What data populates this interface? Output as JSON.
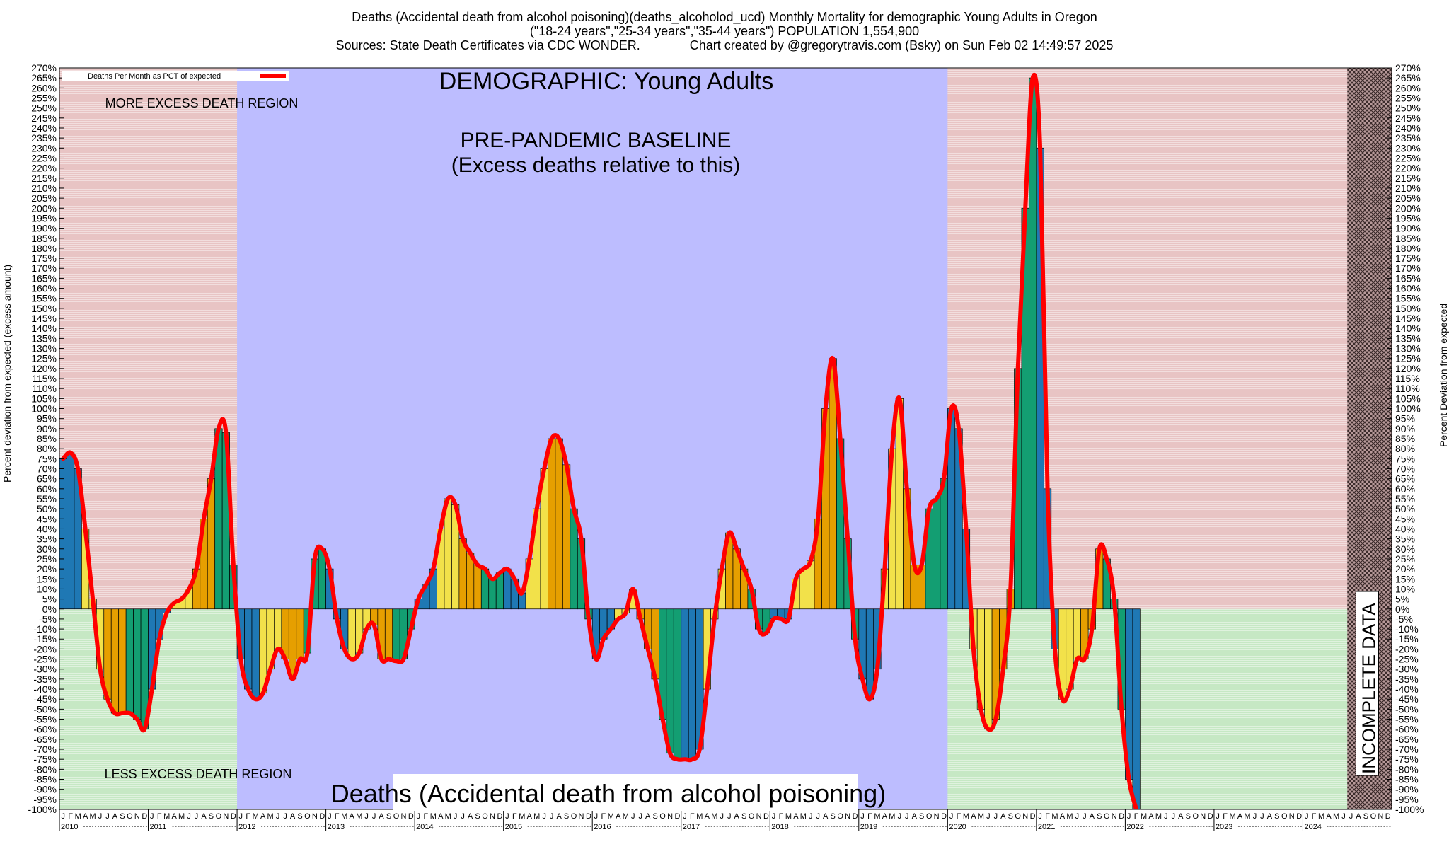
{
  "header": {
    "line1": "Deaths (Accidental death from alcohol poisoning)(deaths_alcoholod_ucd) Monthly Mortality for demographic Young Adults in Oregon",
    "line2": "(\"18-24 years\",\"25-34 years\",\"35-44 years\") POPULATION 1,554,900",
    "line3": "Sources: State Death Certificates via CDC WONDER.              Chart created by @gregorytravis.com (Bsky) on Sun Feb 02 14:49:57 2025"
  },
  "chart_data": {
    "type": "bar",
    "title": "DEMOGRAPHIC: Young Adults",
    "ylabel_left": "Percent deviation from expected (excess amount)",
    "ylabel_right": "Percent Deviation from expected",
    "legend": "Deaths Per Month as PCT of expected",
    "ylim": [
      -100,
      270
    ],
    "ytick_step": 5,
    "start": "2010-01",
    "month_letters": [
      "J",
      "F",
      "M",
      "A",
      "M",
      "J",
      "J",
      "A",
      "S",
      "O",
      "N",
      "D"
    ],
    "years": [
      "2010",
      "2011",
      "2012",
      "2013",
      "2014",
      "2015",
      "2016",
      "2017",
      "2018",
      "2019",
      "2020",
      "2021",
      "2022",
      "2023",
      "2024"
    ],
    "regions": {
      "more_excess": "MORE EXCESS DEATH REGION",
      "less_excess": "LESS EXCESS DEATH REGION",
      "baseline_title": "PRE-PANDEMIC BASELINE",
      "baseline_sub": "(Excess deaths relative to this)",
      "baseline_range": [
        "2012-01",
        "2019-12"
      ],
      "incomplete": "INCOMPLETE DATA",
      "incomplete_from": "2024-07"
    },
    "bottom_label": "Deaths (Accidental death from alcohol poisoning)",
    "colors": {
      "more_bg": "#e8c4c4",
      "less_bg": "#c6e8c4",
      "baseline_bg": "#bdbdff",
      "line": "#ff0000",
      "bars": [
        "#1f78b4",
        "#f2e14a",
        "#e69f00",
        "#139e72"
      ]
    },
    "values": [
      75,
      78,
      70,
      40,
      5,
      -30,
      -45,
      -52,
      -52,
      -52,
      -55,
      -60,
      -40,
      -15,
      -2,
      3,
      5,
      10,
      20,
      45,
      65,
      90,
      88,
      22,
      -25,
      -40,
      -45,
      -42,
      -30,
      -20,
      -25,
      -35,
      -25,
      -22,
      25,
      30,
      20,
      -5,
      -20,
      -25,
      -22,
      -10,
      -8,
      -25,
      -25,
      -26,
      -25,
      -10,
      5,
      12,
      20,
      40,
      55,
      52,
      35,
      28,
      22,
      20,
      15,
      18,
      20,
      15,
      8,
      25,
      50,
      70,
      85,
      85,
      72,
      50,
      35,
      -5,
      -25,
      -15,
      -10,
      -5,
      -2,
      10,
      -5,
      -20,
      -35,
      -55,
      -72,
      -75,
      -75,
      -75,
      -70,
      -40,
      -5,
      20,
      38,
      30,
      20,
      10,
      -10,
      -12,
      -5,
      -5,
      -5,
      15,
      20,
      24,
      45,
      100,
      125,
      85,
      35,
      -15,
      -35,
      -45,
      -30,
      20,
      80,
      105,
      60,
      22,
      22,
      50,
      55,
      65,
      100,
      90,
      40,
      -20,
      -50,
      -60,
      -55,
      -30,
      10,
      120,
      200,
      265,
      230,
      60,
      -20,
      -45,
      -40,
      -25,
      -25,
      -10,
      30,
      25,
      5,
      -50,
      -85,
      -100
    ],
    "ytick_labels": [
      "270%",
      "265%",
      "260%",
      "255%",
      "250%",
      "245%",
      "240%",
      "235%",
      "230%",
      "225%",
      "220%",
      "215%",
      "210%",
      "205%",
      "200%",
      "195%",
      "190%",
      "185%",
      "180%",
      "175%",
      "170%",
      "165%",
      "160%",
      "155%",
      "150%",
      "145%",
      "140%",
      "135%",
      "130%",
      "125%",
      "120%",
      "115%",
      "110%",
      "105%",
      "100%",
      "95%",
      "90%",
      "85%",
      "80%",
      "75%",
      "70%",
      "65%",
      "60%",
      "55%",
      "50%",
      "45%",
      "40%",
      "35%",
      "30%",
      "25%",
      "20%",
      "15%",
      "10%",
      "5%",
      "0%",
      "-5%",
      "-10%",
      "-15%",
      "-20%",
      "-25%",
      "-30%",
      "-35%",
      "-40%",
      "-45%",
      "-50%",
      "-55%",
      "-60%",
      "-65%",
      "-70%",
      "-75%",
      "-80%",
      "-85%",
      "-90%",
      "-95%",
      "-100%"
    ]
  }
}
